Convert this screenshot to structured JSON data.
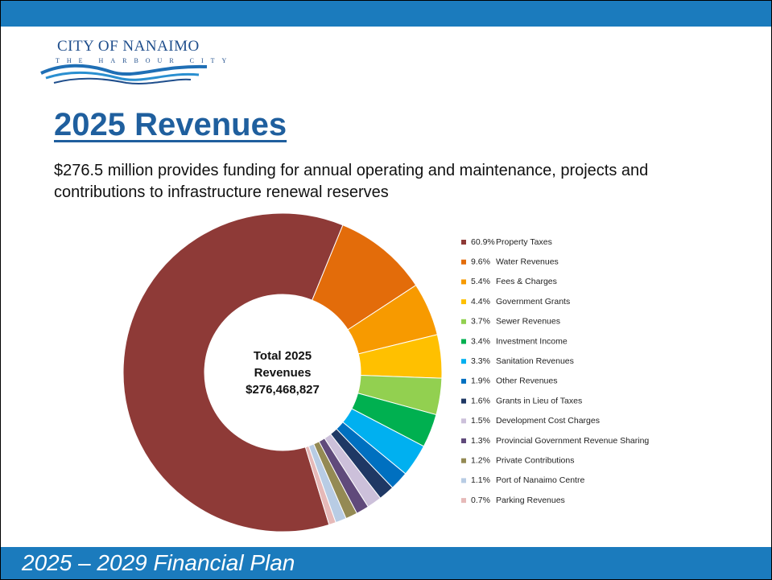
{
  "logo": {
    "name": "CITY OF NANAIMO",
    "tagline": "THE HARBOUR CITY"
  },
  "title": "2025 Revenues",
  "subtitle": "$276.5 million provides funding for annual operating and maintenance, projects and contributions to infrastructure renewal reserves",
  "footer": "2025 – 2029 Financial Plan",
  "chart_data": {
    "type": "donut",
    "center_label": [
      "Total 2025",
      "Revenues",
      "$276,468,827"
    ],
    "categories": [
      "Property Taxes",
      "Water Revenues",
      "Fees & Charges",
      "Government Grants",
      "Sewer Revenues",
      "Investment Income",
      "Sanitation Revenues",
      "Other Revenues",
      "Grants in Lieu of Taxes",
      "Development Cost Charges",
      "Provincial Government Revenue Sharing",
      "Private Contributions",
      "Port of Nanaimo Centre",
      "Parking Revenues"
    ],
    "values": [
      60.9,
      9.6,
      5.4,
      4.4,
      3.7,
      3.4,
      3.3,
      1.9,
      1.6,
      1.5,
      1.3,
      1.2,
      1.1,
      0.7
    ],
    "value_labels": [
      "60.9%",
      "9.6%",
      "5.4%",
      "4.4%",
      "3.7%",
      "3.4%",
      "3.3%",
      "1.9%",
      "1.6%",
      "1.5%",
      "1.3%",
      "1.2%",
      "1.1%",
      "0.7%"
    ],
    "colors": [
      "#8e3a37",
      "#e36c0a",
      "#f79a00",
      "#ffc000",
      "#92d050",
      "#00b050",
      "#00b0f0",
      "#0070c0",
      "#1f3864",
      "#ccc0da",
      "#604a7b",
      "#948a54",
      "#b8cce4",
      "#e6b9b8"
    ],
    "legend": "right"
  }
}
